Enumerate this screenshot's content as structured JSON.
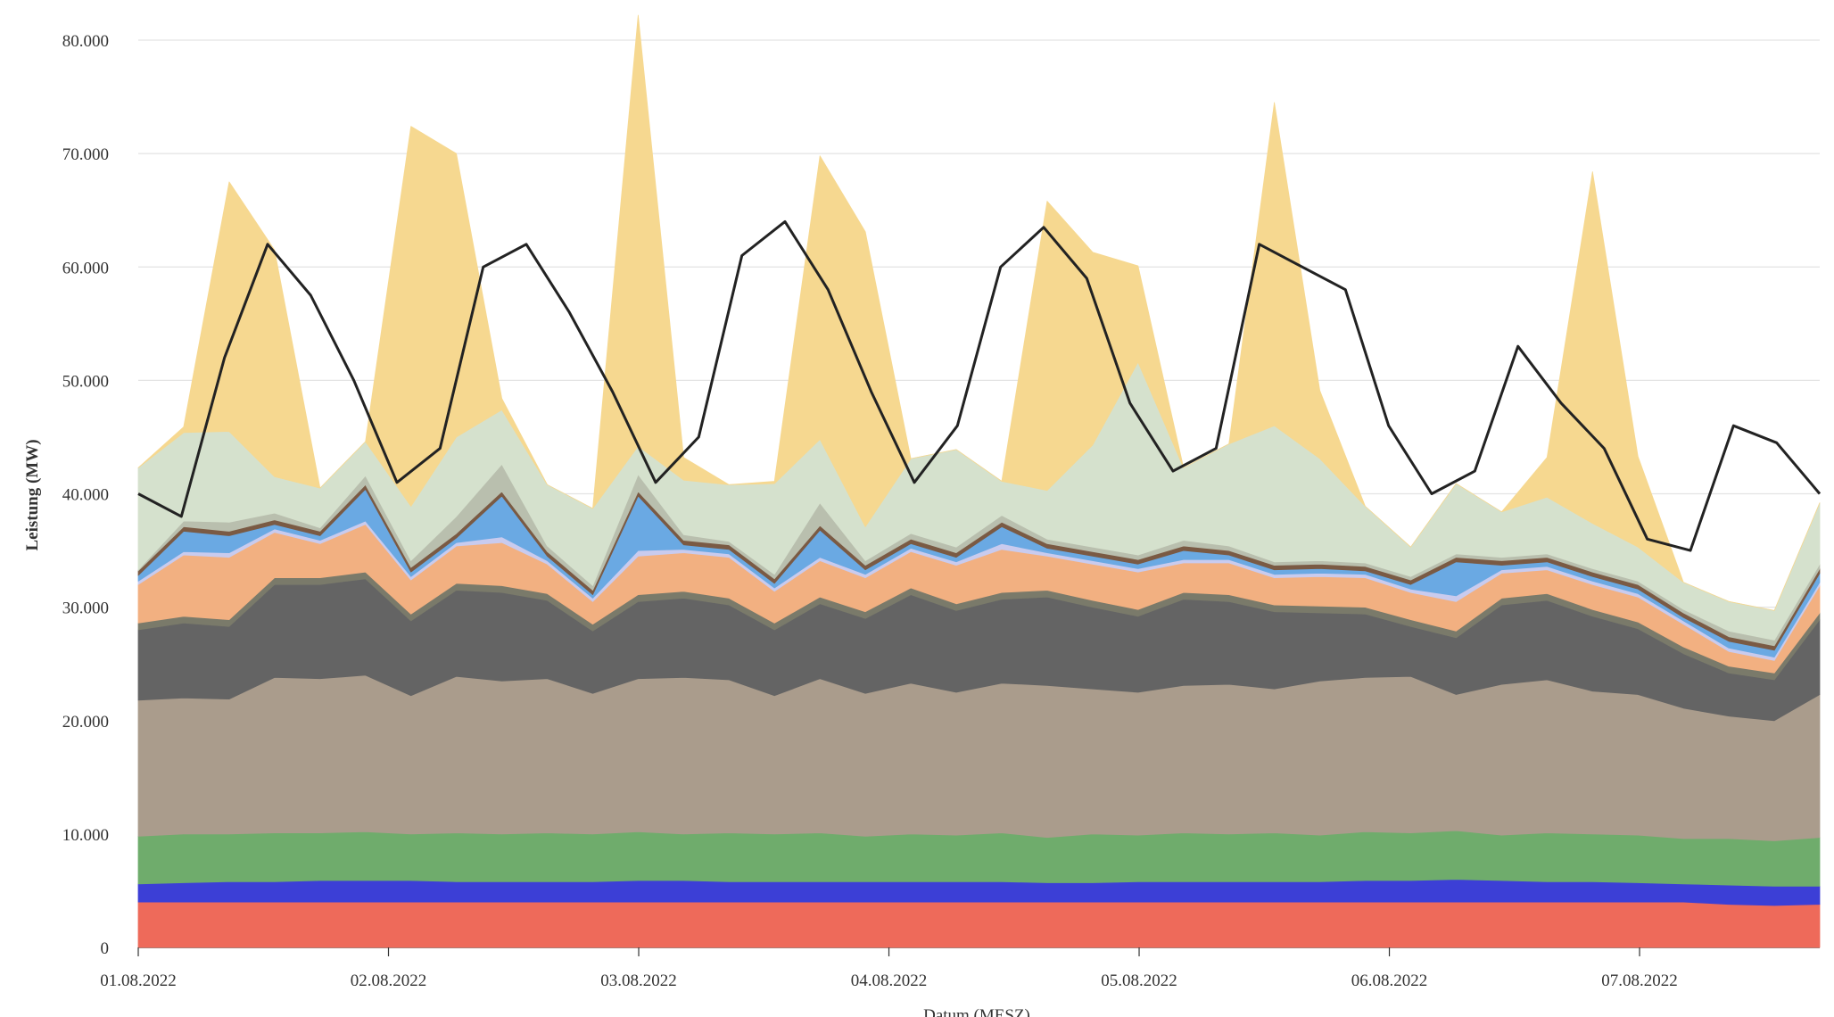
{
  "chart_data": {
    "type": "area",
    "stacked": true,
    "xlabel": "Datum (MESZ)",
    "ylabel": "Leistung (MW)",
    "ylim": [
      0,
      80000
    ],
    "yticks": [
      0,
      10000,
      20000,
      30000,
      40000,
      50000,
      60000,
      70000,
      80000
    ],
    "ytick_labels": [
      "0",
      "10.000",
      "20.000",
      "30.000",
      "40.000",
      "50.000",
      "60.000",
      "70.000",
      "80.000"
    ],
    "xticks": [
      "01.08.2022",
      "02.08.2022",
      "03.08.2022",
      "04.08.2022",
      "05.08.2022",
      "06.08.2022",
      "07.08.2022"
    ],
    "x_range_days": [
      0,
      6.72
    ],
    "grid": true,
    "series": [
      {
        "color": "#ee6a5a",
        "values": [
          4000,
          4000,
          4000,
          4000,
          4000,
          4000,
          4000,
          4000,
          4000,
          4000,
          4000,
          4000,
          4000,
          4000,
          4000,
          4000,
          4000,
          4000,
          4000,
          4000,
          4000,
          4000,
          4000,
          4000,
          4000,
          4000,
          4000,
          4000,
          4000,
          4000,
          4000,
          4000,
          4000,
          4000,
          4000,
          3800,
          3700,
          3800
        ]
      },
      {
        "color": "#3c3fd6",
        "values": [
          1600,
          1700,
          1800,
          1800,
          1900,
          1900,
          1900,
          1800,
          1800,
          1800,
          1800,
          1900,
          1900,
          1800,
          1800,
          1800,
          1800,
          1800,
          1800,
          1800,
          1700,
          1700,
          1800,
          1800,
          1800,
          1800,
          1800,
          1900,
          1900,
          2000,
          1900,
          1800,
          1800,
          1700,
          1600,
          1700,
          1700,
          1600
        ]
      },
      {
        "color": "#6fac6c",
        "values": [
          4200,
          4300,
          4200,
          4300,
          4200,
          4300,
          4100,
          4300,
          4200,
          4300,
          4200,
          4300,
          4100,
          4300,
          4200,
          4300,
          4000,
          4200,
          4100,
          4300,
          4000,
          4300,
          4100,
          4300,
          4200,
          4300,
          4100,
          4300,
          4200,
          4300,
          4000,
          4300,
          4200,
          4200,
          4000,
          4100,
          4000,
          4300
        ]
      },
      {
        "color": "#aa9c8c",
        "values": [
          12000,
          12000,
          11900,
          13700,
          13600,
          13800,
          12200,
          13800,
          13500,
          13600,
          12400,
          13500,
          13800,
          13500,
          12200,
          13600,
          12600,
          13300,
          12600,
          13200,
          13400,
          12800,
          12600,
          13000,
          13200,
          12700,
          13600,
          13600,
          13800,
          12000,
          13300,
          13500,
          12600,
          12400,
          11500,
          10800,
          10600,
          12600
        ]
      },
      {
        "color": "#646464",
        "values": [
          6200,
          6600,
          6400,
          8200,
          8300,
          8500,
          6600,
          7600,
          7800,
          6900,
          5500,
          6800,
          7000,
          6600,
          5800,
          6600,
          6600,
          7800,
          7200,
          7400,
          7800,
          7200,
          6700,
          7600,
          7300,
          6800,
          6000,
          5600,
          4400,
          5000,
          7000,
          7000,
          6600,
          5800,
          4800,
          3800,
          3600,
          6600
        ]
      },
      {
        "color": "#7a7a6a",
        "values": [
          600,
          600,
          600,
          600,
          600,
          600,
          600,
          600,
          600,
          600,
          600,
          600,
          600,
          600,
          600,
          600,
          600,
          600,
          600,
          600,
          600,
          600,
          600,
          600,
          600,
          600,
          600,
          600,
          600,
          600,
          600,
          600,
          600,
          600,
          600,
          600,
          600,
          600
        ]
      },
      {
        "color": "#f2b081",
        "values": [
          3400,
          5400,
          5500,
          4000,
          3000,
          4200,
          3000,
          3300,
          3800,
          2600,
          2000,
          3400,
          3400,
          3600,
          2800,
          3200,
          3000,
          3200,
          3400,
          3800,
          3000,
          3200,
          3300,
          2600,
          2800,
          2400,
          2600,
          2600,
          2400,
          2600,
          2200,
          2100,
          2200,
          2200,
          2000,
          1300,
          1100,
          2400
        ]
      },
      {
        "color": "#c9cbee",
        "values": [
          300,
          300,
          400,
          300,
          300,
          300,
          300,
          300,
          500,
          300,
          300,
          500,
          300,
          300,
          300,
          300,
          300,
          300,
          300,
          500,
          300,
          300,
          300,
          300,
          300,
          300,
          300,
          300,
          300,
          500,
          300,
          300,
          300,
          300,
          300,
          300,
          300,
          300
        ]
      },
      {
        "color": "#6aa9e3",
        "values": [
          500,
          1800,
          1500,
          400,
          400,
          2800,
          400,
          400,
          3600,
          400,
          300,
          4800,
          400,
          400,
          400,
          2400,
          400,
          400,
          400,
          1500,
          400,
          400,
          400,
          800,
          400,
          400,
          400,
          300,
          400,
          3000,
          400,
          400,
          400,
          400,
          300,
          600,
          600,
          800
        ]
      },
      {
        "color": "#7a5a44",
        "values": [
          400,
          400,
          400,
          400,
          400,
          400,
          400,
          400,
          400,
          400,
          400,
          400,
          400,
          400,
          400,
          400,
          400,
          400,
          400,
          400,
          400,
          400,
          400,
          400,
          400,
          400,
          400,
          400,
          400,
          400,
          400,
          400,
          400,
          400,
          400,
          400,
          400,
          400
        ]
      },
      {
        "color": "#b9bfae",
        "values": [
          100,
          500,
          800,
          600,
          300,
          800,
          600,
          1500,
          2400,
          500,
          400,
          1500,
          500,
          300,
          400,
          2000,
          400,
          500,
          500,
          600,
          400,
          400,
          400,
          500,
          400,
          300,
          300,
          300,
          300,
          300,
          300,
          300,
          300,
          300,
          300,
          500,
          500,
          400
        ]
      },
      {
        "color": "#d5e1cd",
        "values": [
          9000,
          7800,
          8000,
          3200,
          3500,
          3000,
          4800,
          7000,
          4800,
          5400,
          6800,
          2500,
          4800,
          5000,
          8000,
          5600,
          3000,
          6600,
          8600,
          3000,
          4300,
          9000,
          17000,
          6400,
          9000,
          12000,
          9000,
          5000,
          2600,
          6200,
          4000,
          5000,
          4000,
          3000,
          2400,
          2600,
          2600,
          5400
        ]
      },
      {
        "color": "#f6d890",
        "values": [
          0,
          500,
          22000,
          20000,
          0,
          0,
          33500,
          25000,
          1000,
          0,
          0,
          38000,
          2000,
          0,
          200,
          25000,
          26000,
          0,
          0,
          0,
          25500,
          17000,
          8500,
          0,
          0,
          28500,
          6000,
          0,
          0,
          0,
          0,
          3500,
          31000,
          8000,
          0,
          0,
          0,
          0
        ]
      }
    ],
    "line": {
      "color": "#222222",
      "values": [
        40000,
        38000,
        52000,
        62000,
        57500,
        50000,
        41000,
        44000,
        60000,
        62000,
        56000,
        49000,
        41000,
        45000,
        61000,
        64000,
        58000,
        49000,
        41000,
        46000,
        60000,
        63500,
        59000,
        48000,
        42000,
        44000,
        62000,
        60000,
        58000,
        46000,
        40000,
        42000,
        53000,
        48000,
        44000,
        36000,
        35000,
        46000,
        44500,
        40000
      ]
    }
  }
}
